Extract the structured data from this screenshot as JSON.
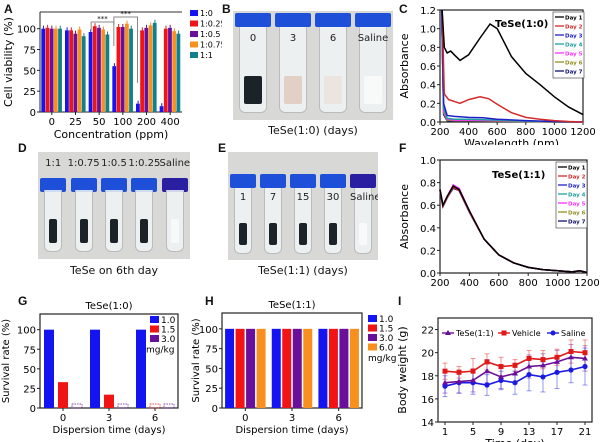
{
  "panel_labels": {
    "A": "A",
    "B": "B",
    "C": "C",
    "D": "D",
    "E": "E",
    "F": "F",
    "G": "G",
    "H": "H",
    "I": "I"
  },
  "colors": {
    "blue": "#1414f0",
    "red": "#f01414",
    "purple": "#6a0f9a",
    "orange": "#f7901e",
    "teal": "#12808c",
    "day1": "#000000",
    "day2": "#d42a2a",
    "day3": "#2020c8",
    "day4": "#20a0a0",
    "day5": "#ff30ff",
    "day6": "#909020",
    "day7": "#101070",
    "cap_blue": "#1d4fd8",
    "cap_navy": "#2a1fa0"
  },
  "photos": {
    "B": {
      "caption": "TeSe(1:0) (days)",
      "tubes": [
        {
          "label": "0",
          "liquid": "dark"
        },
        {
          "label": "3",
          "liquid": "pink"
        },
        {
          "label": "6",
          "liquid": "pale"
        },
        {
          "label": "Saline",
          "liquid": "clear"
        }
      ]
    },
    "D": {
      "caption": "TeSe on 6th day",
      "tubes": [
        {
          "label": "1:1",
          "liquid": "dark"
        },
        {
          "label": "1:0.75",
          "liquid": "dark"
        },
        {
          "label": "1:0.5",
          "liquid": "dark"
        },
        {
          "label": "1:0.25",
          "liquid": "dark"
        },
        {
          "label": "Saline",
          "liquid": "clear"
        }
      ]
    },
    "E": {
      "caption": "TeSe(1:1) (days)",
      "tubes": [
        {
          "label": "1",
          "liquid": "dark"
        },
        {
          "label": "7",
          "liquid": "dark"
        },
        {
          "label": "15",
          "liquid": "dark"
        },
        {
          "label": "30",
          "liquid": "dark"
        },
        {
          "label": "Saline",
          "liquid": "clear"
        }
      ]
    }
  },
  "chart_data": [
    {
      "id": "A",
      "type": "bar",
      "title": "",
      "xlabel": "Concentration (ppm)",
      "ylabel": "Cell viability (%)",
      "ylim": [
        0,
        120
      ],
      "yticks": [
        0,
        25,
        50,
        75,
        100
      ],
      "categories": [
        "0",
        "25",
        "50",
        "100",
        "200",
        "400"
      ],
      "legend_position": "right",
      "series": [
        {
          "name": "1:0",
          "color": "#1414f0",
          "values": [
            100,
            98,
            96,
            55,
            10,
            7
          ]
        },
        {
          "name": "1:0.25",
          "color": "#f01414",
          "values": [
            101,
            98,
            103,
            102,
            98,
            100
          ]
        },
        {
          "name": "1:0.5",
          "color": "#6a0f9a",
          "values": [
            100,
            94,
            101,
            102,
            101,
            101
          ]
        },
        {
          "name": "1:0.75",
          "color": "#f7901e",
          "values": [
            100,
            99,
            99,
            106,
            104,
            97
          ]
        },
        {
          "name": "1:1",
          "color": "#12808c",
          "values": [
            100,
            91,
            93,
            100,
            107,
            94
          ]
        }
      ],
      "annotations": [
        {
          "text": "***",
          "between": [
            "50",
            "100"
          ]
        },
        {
          "text": "***",
          "between": [
            "100",
            "200"
          ]
        }
      ]
    },
    {
      "id": "C",
      "type": "line",
      "title": "TeSe(1:0)",
      "xlabel": "Wavelength (nm)",
      "ylabel": "Absorbance",
      "xlim": [
        200,
        1200
      ],
      "ylim": [
        0,
        1.2
      ],
      "xticks": [
        200,
        400,
        600,
        800,
        1000,
        1200
      ],
      "yticks": [
        0.0,
        0.2,
        0.4,
        0.6,
        0.8,
        1.0,
        1.2
      ],
      "legend_position": "top-right",
      "series": [
        {
          "name": "Day 1",
          "color": "#000000",
          "x": [
            215,
            230,
            250,
            275,
            300,
            340,
            400,
            480,
            550,
            600,
            700,
            800,
            900,
            1000,
            1100,
            1200
          ],
          "y": [
            1.2,
            0.8,
            0.74,
            0.76,
            0.72,
            0.66,
            0.72,
            0.9,
            1.05,
            1.0,
            0.7,
            0.52,
            0.4,
            0.27,
            0.16,
            0.08
          ]
        },
        {
          "name": "Day 2",
          "color": "#d42a2a",
          "x": [
            215,
            230,
            260,
            300,
            340,
            400,
            480,
            540,
            600,
            700,
            800,
            900,
            1000,
            1100,
            1200
          ],
          "y": [
            1.2,
            0.3,
            0.24,
            0.22,
            0.2,
            0.24,
            0.27,
            0.25,
            0.19,
            0.1,
            0.05,
            0.03,
            0.015,
            0.005,
            0.0
          ]
        },
        {
          "name": "Day 3",
          "color": "#2020c8",
          "x": [
            212,
            225,
            250,
            300,
            400,
            500,
            600,
            800,
            1000,
            1200
          ],
          "y": [
            1.2,
            0.2,
            0.07,
            0.06,
            0.05,
            0.045,
            0.03,
            0.015,
            0.005,
            0.0
          ]
        },
        {
          "name": "Day 4",
          "color": "#20a0a0",
          "x": [
            212,
            225,
            250,
            300,
            400,
            600,
            800,
            1000,
            1200
          ],
          "y": [
            1.2,
            0.15,
            0.04,
            0.03,
            0.03,
            0.02,
            0.01,
            0.005,
            0.0
          ]
        },
        {
          "name": "Day 5",
          "color": "#ff30ff",
          "x": [
            212,
            225,
            250,
            300,
            400,
            600,
            800,
            1000,
            1200
          ],
          "y": [
            1.2,
            0.12,
            0.03,
            0.02,
            0.02,
            0.015,
            0.01,
            0.005,
            0.0
          ]
        },
        {
          "name": "Day 6",
          "color": "#909020",
          "x": [
            212,
            225,
            250,
            300,
            400,
            600,
            800,
            1000,
            1200
          ],
          "y": [
            1.2,
            0.1,
            0.02,
            0.015,
            0.015,
            0.01,
            0.005,
            0.0,
            0.0
          ]
        },
        {
          "name": "Day 7",
          "color": "#101070",
          "x": [
            212,
            225,
            250,
            300,
            400,
            600,
            800,
            1000,
            1200
          ],
          "y": [
            1.2,
            0.08,
            0.015,
            0.01,
            0.01,
            0.008,
            0.004,
            0.0,
            0.0
          ]
        }
      ]
    },
    {
      "id": "F",
      "type": "line",
      "title": "TeSe(1:1)",
      "xlabel": "Wavelength (nm)",
      "ylabel": "Absorbance",
      "xlim": [
        200,
        1200
      ],
      "ylim": [
        0,
        1.0
      ],
      "xticks": [
        200,
        400,
        600,
        800,
        1000,
        1200
      ],
      "yticks": [
        0.0,
        0.2,
        0.4,
        0.6,
        0.8,
        1.0
      ],
      "legend_position": "top-right",
      "series": [
        {
          "name": "Day 1",
          "color": "#000000",
          "x": [
            200,
            220,
            250,
            290,
            330,
            400,
            500,
            600,
            700,
            800,
            900,
            1000,
            1100,
            1150,
            1200
          ],
          "y": [
            0.74,
            0.6,
            0.68,
            0.77,
            0.74,
            0.55,
            0.3,
            0.16,
            0.09,
            0.05,
            0.03,
            0.02,
            0.01,
            0.02,
            0.005
          ]
        },
        {
          "name": "Day 2",
          "color": "#d42a2a",
          "x": [
            200,
            220,
            250,
            290,
            330,
            400,
            500,
            600,
            700,
            800,
            900,
            1000,
            1100,
            1150,
            1200
          ],
          "y": [
            0.73,
            0.59,
            0.67,
            0.76,
            0.73,
            0.54,
            0.3,
            0.16,
            0.09,
            0.05,
            0.03,
            0.02,
            0.01,
            0.02,
            0.005
          ]
        },
        {
          "name": "Day 3",
          "color": "#2020c8",
          "x": [
            200,
            220,
            250,
            290,
            330,
            400,
            500,
            600,
            700,
            800,
            900,
            1000,
            1100,
            1150,
            1200
          ],
          "y": [
            0.73,
            0.59,
            0.67,
            0.76,
            0.73,
            0.54,
            0.3,
            0.16,
            0.09,
            0.05,
            0.03,
            0.02,
            0.01,
            0.02,
            0.005
          ]
        },
        {
          "name": "Day 4",
          "color": "#20a0a0",
          "x": [
            200,
            220,
            250,
            290,
            330,
            400,
            500,
            600,
            700,
            800,
            900,
            1000,
            1100,
            1150,
            1200
          ],
          "y": [
            0.73,
            0.59,
            0.67,
            0.76,
            0.73,
            0.54,
            0.3,
            0.16,
            0.09,
            0.05,
            0.03,
            0.02,
            0.01,
            0.02,
            0.005
          ]
        },
        {
          "name": "Day 5",
          "color": "#ff30ff",
          "x": [
            200,
            220,
            250,
            290,
            330,
            400,
            500,
            600,
            700,
            800,
            900,
            1000,
            1100,
            1150,
            1200
          ],
          "y": [
            0.74,
            0.6,
            0.68,
            0.78,
            0.75,
            0.55,
            0.3,
            0.16,
            0.09,
            0.05,
            0.03,
            0.02,
            0.01,
            0.02,
            0.005
          ]
        },
        {
          "name": "Day 6",
          "color": "#909020",
          "x": [
            200,
            220,
            250,
            290,
            330,
            400,
            500,
            600,
            700,
            800,
            900,
            1000,
            1100,
            1150,
            1200
          ],
          "y": [
            0.73,
            0.59,
            0.67,
            0.76,
            0.73,
            0.54,
            0.3,
            0.16,
            0.09,
            0.05,
            0.03,
            0.02,
            0.01,
            0.02,
            0.005
          ]
        },
        {
          "name": "Day 7",
          "color": "#101070",
          "x": [
            200,
            220,
            250,
            290,
            330,
            400,
            500,
            600,
            700,
            800,
            900,
            1000,
            1100,
            1150,
            1200
          ],
          "y": [
            0.73,
            0.59,
            0.67,
            0.75,
            0.73,
            0.54,
            0.3,
            0.16,
            0.09,
            0.05,
            0.03,
            0.02,
            0.01,
            0.02,
            0.005
          ]
        }
      ]
    },
    {
      "id": "G",
      "type": "bar",
      "title": "TeSe(1:0)",
      "xlabel": "Dispersion time  (days)",
      "ylabel": "Survival rate (%)",
      "ylim": [
        0,
        120
      ],
      "yticks": [
        0,
        25,
        50,
        75,
        100
      ],
      "categories": [
        "0",
        "3",
        "6"
      ],
      "legend_position": "top-right",
      "legend_unit": "mg/kg",
      "series": [
        {
          "name": "1.0",
          "color": "#1414f0",
          "values": [
            100,
            100,
            100
          ]
        },
        {
          "name": "1.5",
          "color": "#f01414",
          "values": [
            33,
            17,
            0
          ]
        },
        {
          "name": "3.0",
          "color": "#6a0f9a",
          "values": [
            0,
            0,
            0
          ]
        }
      ]
    },
    {
      "id": "H",
      "type": "bar",
      "title": "TeSe(1:1)",
      "xlabel": "Dispersion time  (days)",
      "ylabel": "Survival rate (%)",
      "ylim": [
        0,
        120
      ],
      "yticks": [
        0,
        25,
        50,
        75,
        100
      ],
      "categories": [
        "0",
        "3",
        "6"
      ],
      "legend_position": "right",
      "legend_unit": "mg/kg",
      "series": [
        {
          "name": "1.0",
          "color": "#1414f0",
          "values": [
            100,
            100,
            100
          ]
        },
        {
          "name": "1.5",
          "color": "#f01414",
          "values": [
            100,
            100,
            100
          ]
        },
        {
          "name": "3.0",
          "color": "#6a0f9a",
          "values": [
            100,
            100,
            100
          ]
        },
        {
          "name": "6.0",
          "color": "#f7901e",
          "values": [
            100,
            100,
            100
          ]
        }
      ]
    },
    {
      "id": "I",
      "type": "line",
      "title": "",
      "xlabel": "Time (day)",
      "ylabel": "Body weight (g)",
      "xlim": [
        0,
        22
      ],
      "ylim": [
        14,
        23
      ],
      "xticks": [
        1,
        5,
        9,
        13,
        17,
        21
      ],
      "yticks": [
        14,
        16,
        18,
        20,
        22
      ],
      "legend_position": "top",
      "series": [
        {
          "name": "TeSe(1:1)",
          "color": "#6a0f9a",
          "marker": "triangle",
          "x": [
            1,
            3,
            5,
            7,
            9,
            11,
            13,
            15,
            17,
            19,
            21
          ],
          "y": [
            17.4,
            17.5,
            17.6,
            18.4,
            17.9,
            18.2,
            18.8,
            18.9,
            19.2,
            19.6,
            19.5
          ],
          "err": [
            0.9,
            1.0,
            1.0,
            1.0,
            1.0,
            0.9,
            1.0,
            1.0,
            1.0,
            1.1,
            1.1
          ]
        },
        {
          "name": "Vehicle",
          "color": "#e01818",
          "marker": "square",
          "x": [
            1,
            3,
            5,
            7,
            9,
            11,
            13,
            15,
            17,
            19,
            21
          ],
          "y": [
            18.4,
            18.3,
            18.4,
            19.2,
            18.8,
            18.9,
            19.5,
            19.4,
            19.6,
            20.1,
            20.0
          ],
          "err": [
            0.7,
            0.5,
            1.1,
            0.7,
            0.8,
            0.5,
            0.7,
            0.8,
            0.7,
            1.0,
            1.1
          ]
        },
        {
          "name": "Saline",
          "color": "#1a1ae0",
          "marker": "circle",
          "x": [
            1,
            3,
            5,
            7,
            9,
            11,
            13,
            15,
            17,
            19,
            21
          ],
          "y": [
            17.1,
            17.4,
            17.4,
            17.2,
            17.6,
            17.4,
            18.1,
            17.9,
            18.3,
            18.5,
            18.8
          ],
          "err": [
            0.9,
            0.9,
            1.0,
            0.9,
            0.8,
            1.0,
            1.4,
            1.3,
            1.4,
            1.1,
            1.6
          ]
        }
      ]
    }
  ]
}
